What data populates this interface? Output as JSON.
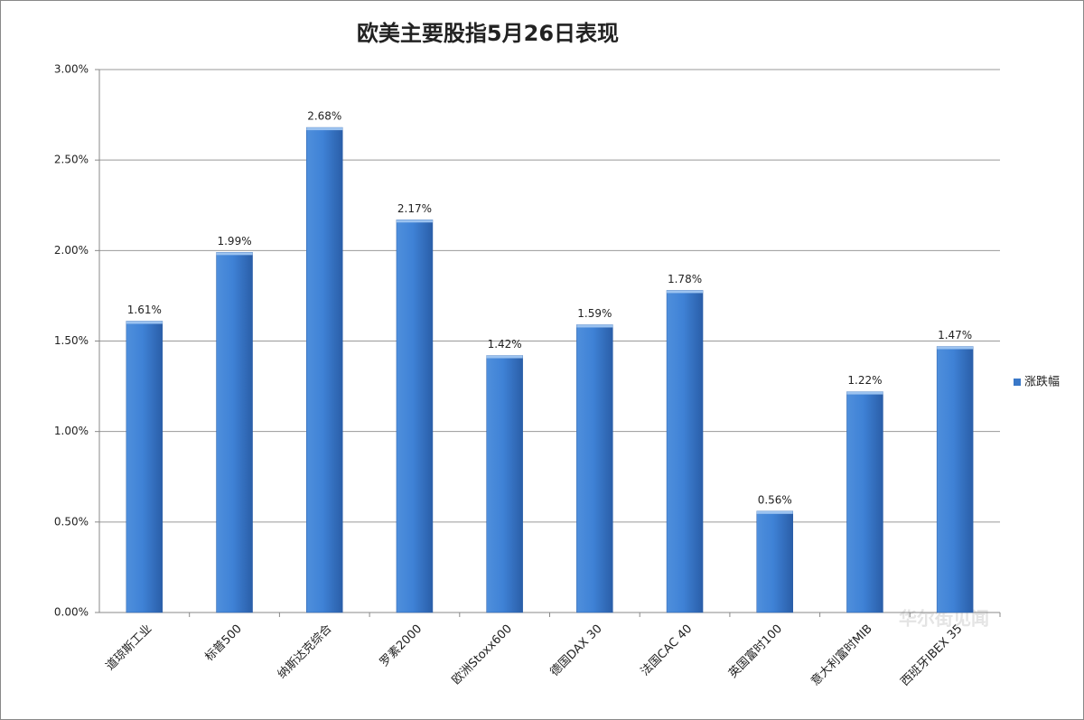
{
  "chart_data": {
    "type": "bar",
    "title": "欧美主要股指5月26日表现",
    "categories": [
      "道琼斯工业",
      "标普500",
      "纳斯达克综合",
      "罗素2000",
      "欧洲Stoxx600",
      "德国DAX 30",
      "法国CAC 40",
      "英国富时100",
      "意大利富时MIB",
      "西班牙IBEX 35"
    ],
    "series": [
      {
        "name": "涨跌幅",
        "color": "#3a78c8",
        "values": [
          1.61,
          1.99,
          2.68,
          2.17,
          1.42,
          1.59,
          1.78,
          0.56,
          1.22,
          1.47
        ],
        "value_labels": [
          "1.61%",
          "1.99%",
          "2.68%",
          "2.17%",
          "1.42%",
          "1.59%",
          "1.78%",
          "0.56%",
          "1.22%",
          "1.47%"
        ]
      }
    ],
    "ylim": [
      0,
      3
    ],
    "yticks": [
      {
        "value": 0,
        "label": "0.00%"
      },
      {
        "value": 0.5,
        "label": "0.50%"
      },
      {
        "value": 1,
        "label": "1.00%"
      },
      {
        "value": 1.5,
        "label": "1.50%"
      },
      {
        "value": 2,
        "label": "2.00%"
      },
      {
        "value": 2.5,
        "label": "2.50%"
      },
      {
        "value": 3,
        "label": "3.00%"
      }
    ],
    "grid": true,
    "legend": "right",
    "watermark": "华尔街见闻"
  }
}
